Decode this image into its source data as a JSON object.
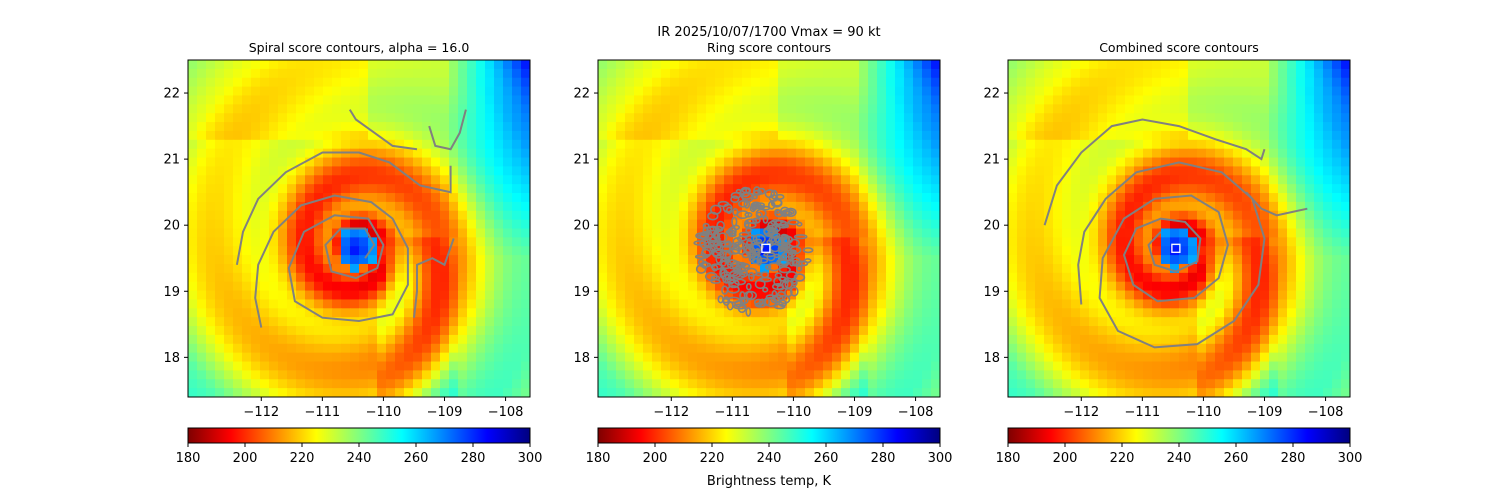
{
  "figure": {
    "suptitle_line1": "IR  2025/10/07/1700    Vmax = 90 kt",
    "colorbar_label": "Brightness temp, K"
  },
  "colorbar": {
    "vmin": 180,
    "vmax": 300,
    "ticks": [
      180,
      200,
      220,
      240,
      260,
      280,
      300
    ],
    "colormap": "jet_r",
    "colors_warm_to_cold": [
      "#7f0000",
      "#ff0000",
      "#ff8000",
      "#ffff00",
      "#80ff80",
      "#00ffff",
      "#0080ff",
      "#0000ff",
      "#00007f"
    ]
  },
  "chart_data": [
    {
      "type": "heatmap",
      "title": "Spiral score contours, alpha = 16.0",
      "xlim": [
        -113.2,
        -107.6
      ],
      "ylim": [
        17.4,
        22.5
      ],
      "xticks": [
        -112,
        -111,
        -110,
        -109,
        -108
      ],
      "yticks": [
        18,
        19,
        20,
        21,
        22
      ],
      "field": "IR brightness temperature (K)",
      "eye_center": [
        -110.45,
        19.65
      ],
      "contour_color": "#808080",
      "contours": [
        [
          [
            -112.4,
            19.4
          ],
          [
            -112.3,
            19.9
          ],
          [
            -112.05,
            20.4
          ],
          [
            -111.6,
            20.8
          ],
          [
            -111.0,
            21.1
          ],
          [
            -110.4,
            21.1
          ],
          [
            -109.9,
            20.95
          ],
          [
            -109.4,
            20.6
          ],
          [
            -108.9,
            20.5
          ],
          [
            -108.9,
            20.9
          ]
        ],
        [
          [
            -112.0,
            18.45
          ],
          [
            -112.1,
            18.9
          ],
          [
            -112.05,
            19.4
          ],
          [
            -111.8,
            19.9
          ],
          [
            -111.35,
            20.3
          ],
          [
            -110.8,
            20.45
          ],
          [
            -110.2,
            20.35
          ],
          [
            -109.85,
            20.1
          ],
          [
            -109.6,
            19.65
          ],
          [
            -109.6,
            19.1
          ],
          [
            -109.85,
            18.65
          ],
          [
            -110.4,
            18.55
          ],
          [
            -111.0,
            18.6
          ],
          [
            -111.45,
            18.85
          ],
          [
            -111.55,
            19.35
          ],
          [
            -111.3,
            19.9
          ],
          [
            -110.8,
            20.15
          ],
          [
            -110.25,
            20.1
          ],
          [
            -110.0,
            19.7
          ],
          [
            -110.1,
            19.35
          ],
          [
            -110.45,
            19.2
          ],
          [
            -110.85,
            19.3
          ],
          [
            -110.95,
            19.7
          ],
          [
            -110.7,
            19.95
          ],
          [
            -110.3,
            19.95
          ],
          [
            -110.15,
            19.7
          ],
          [
            -110.3,
            19.5
          ]
        ],
        [
          [
            -109.5,
            18.6
          ],
          [
            -109.45,
            19.0
          ],
          [
            -109.45,
            19.4
          ],
          [
            -109.2,
            19.5
          ],
          [
            -109.0,
            19.4
          ],
          [
            -108.85,
            19.8
          ]
        ],
        [
          [
            -109.25,
            21.5
          ],
          [
            -109.15,
            21.2
          ],
          [
            -108.9,
            21.15
          ],
          [
            -108.75,
            21.4
          ],
          [
            -108.65,
            21.75
          ]
        ],
        [
          [
            -110.55,
            21.75
          ],
          [
            -110.45,
            21.6
          ],
          [
            -110.15,
            21.4
          ],
          [
            -109.85,
            21.2
          ],
          [
            -109.45,
            21.15
          ]
        ]
      ]
    },
    {
      "type": "heatmap",
      "title": "Ring score contours",
      "xlim": [
        -113.2,
        -107.6
      ],
      "ylim": [
        17.4,
        22.5
      ],
      "xticks": [
        -112,
        -111,
        -110,
        -109,
        -108
      ],
      "yticks": [
        18,
        19,
        20,
        21,
        22
      ],
      "field": "IR brightness temperature (K)",
      "eye_center": [
        -110.45,
        19.65
      ],
      "center_marker": [
        -110.45,
        19.65
      ],
      "contour_color": "#808080",
      "ring_region": {
        "center": [
          -110.65,
          19.6
        ],
        "rx": 0.9,
        "ry": 0.95
      }
    },
    {
      "type": "heatmap",
      "title": "Combined score contours",
      "xlim": [
        -113.2,
        -107.6
      ],
      "ylim": [
        17.4,
        22.5
      ],
      "xticks": [
        -112,
        -111,
        -110,
        -109,
        -108
      ],
      "yticks": [
        18,
        19,
        20,
        21,
        22
      ],
      "field": "IR brightness temperature (K)",
      "eye_center": [
        -110.45,
        19.65
      ],
      "center_marker": [
        -110.45,
        19.65
      ],
      "contour_color": "#808080",
      "contours": [
        [
          [
            -112.6,
            20.0
          ],
          [
            -112.4,
            20.6
          ],
          [
            -112.0,
            21.1
          ],
          [
            -111.5,
            21.5
          ],
          [
            -111.0,
            21.6
          ],
          [
            -110.4,
            21.5
          ],
          [
            -109.8,
            21.3
          ],
          [
            -109.3,
            21.15
          ],
          [
            -109.05,
            21.0
          ],
          [
            -109.0,
            21.15
          ]
        ],
        [
          [
            -112.0,
            18.8
          ],
          [
            -112.05,
            19.4
          ],
          [
            -111.95,
            19.9
          ],
          [
            -111.6,
            20.4
          ],
          [
            -111.1,
            20.8
          ],
          [
            -110.4,
            20.95
          ],
          [
            -109.7,
            20.8
          ],
          [
            -109.2,
            20.4
          ],
          [
            -109.0,
            19.8
          ],
          [
            -109.1,
            19.1
          ],
          [
            -109.5,
            18.55
          ],
          [
            -110.1,
            18.2
          ],
          [
            -110.8,
            18.15
          ],
          [
            -111.4,
            18.4
          ],
          [
            -111.7,
            18.9
          ],
          [
            -111.65,
            19.5
          ],
          [
            -111.3,
            20.1
          ],
          [
            -110.8,
            20.4
          ],
          [
            -110.2,
            20.45
          ],
          [
            -109.75,
            20.2
          ],
          [
            -109.6,
            19.7
          ],
          [
            -109.75,
            19.2
          ],
          [
            -110.15,
            18.9
          ],
          [
            -110.75,
            18.85
          ],
          [
            -111.15,
            19.1
          ],
          [
            -111.3,
            19.55
          ],
          [
            -111.1,
            19.95
          ],
          [
            -110.7,
            20.1
          ],
          [
            -110.3,
            20.05
          ],
          [
            -110.05,
            19.8
          ],
          [
            -110.1,
            19.45
          ],
          [
            -110.45,
            19.3
          ],
          [
            -110.8,
            19.4
          ],
          [
            -110.9,
            19.7
          ],
          [
            -110.7,
            19.9
          ]
        ],
        [
          [
            -108.3,
            20.25
          ],
          [
            -108.55,
            20.2
          ],
          [
            -108.8,
            20.15
          ],
          [
            -109.05,
            20.25
          ],
          [
            -109.3,
            20.5
          ]
        ]
      ]
    }
  ]
}
